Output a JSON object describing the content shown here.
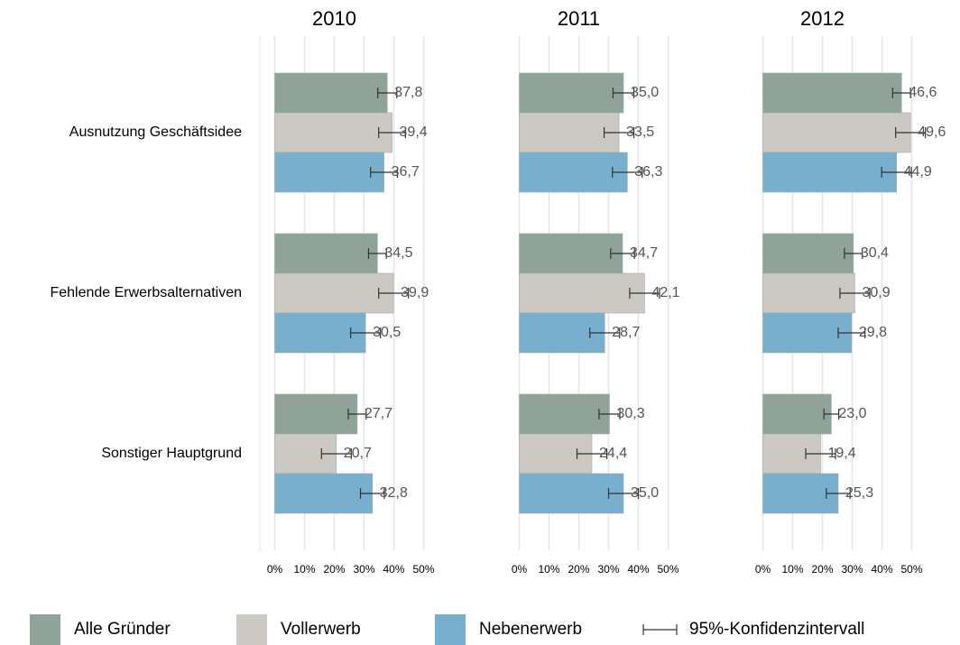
{
  "chart_data": {
    "type": "bar",
    "orientation": "horizontal",
    "categories": [
      "Ausnutzung Geschäftsidee",
      "Fehlende Erwerbsalternativen",
      "Sonstiger Hauptgrund"
    ],
    "series": [
      {
        "name": "Alle Gründer",
        "color": "#8fa398"
      },
      {
        "name": "Vollerwerb",
        "color": "#ccc9c3"
      },
      {
        "name": "Nebenerwerb",
        "color": "#78afcd"
      }
    ],
    "error_label": "95%-Konfidenzintervall",
    "xlim": [
      -5,
      65
    ],
    "xticks": [
      {
        "value": 0,
        "label": "0%"
      },
      {
        "value": 10,
        "label": "10%"
      },
      {
        "value": 20,
        "label": "20%"
      },
      {
        "value": 30,
        "label": "30%"
      },
      {
        "value": 40,
        "label": "40%"
      },
      {
        "value": 50,
        "label": "50%"
      }
    ],
    "grid": true,
    "panels": [
      {
        "title": "2010",
        "series": [
          {
            "values": [
              37.8,
              34.5,
              27.7
            ],
            "value_labels": [
              "37,8",
              "34,5",
              "27,7"
            ],
            "errors": [
              3.2,
              3,
              3
            ]
          },
          {
            "values": [
              39.4,
              39.9,
              20.7
            ],
            "value_labels": [
              "39,4",
              "39,9",
              "20,7"
            ],
            "errors": [
              4.5,
              5,
              5
            ]
          },
          {
            "values": [
              36.7,
              30.5,
              32.8
            ],
            "value_labels": [
              "36,7",
              "30,5",
              "32,8"
            ],
            "errors": [
              4.5,
              5,
              4
            ]
          }
        ]
      },
      {
        "title": "2011",
        "series": [
          {
            "values": [
              35.0,
              34.7,
              30.3
            ],
            "value_labels": [
              "35,0",
              "34,7",
              "30,3"
            ],
            "errors": [
              3.5,
              4,
              3.5
            ]
          },
          {
            "values": [
              33.5,
              42.1,
              24.4
            ],
            "value_labels": [
              "33,5",
              "42,1",
              "24,4"
            ],
            "errors": [
              5,
              5,
              5
            ]
          },
          {
            "values": [
              36.3,
              28.7,
              35.0
            ],
            "value_labels": [
              "36,3",
              "28,7",
              "35,0"
            ],
            "errors": [
              5,
              5,
              5
            ]
          }
        ]
      },
      {
        "title": "2012",
        "series": [
          {
            "values": [
              46.6,
              30.4,
              23.0
            ],
            "value_labels": [
              "46,6",
              "30,4",
              "23,0"
            ],
            "errors": [
              3,
              3,
              2.5
            ]
          },
          {
            "values": [
              49.6,
              30.9,
              19.4
            ],
            "value_labels": [
              "49,6",
              "30,9",
              "19,4"
            ],
            "errors": [
              5,
              5,
              5
            ]
          },
          {
            "values": [
              44.9,
              29.8,
              25.3
            ],
            "value_labels": [
              "44,9",
              "29,8",
              "25,3"
            ],
            "errors": [
              5,
              4.5,
              4
            ]
          }
        ]
      }
    ]
  }
}
